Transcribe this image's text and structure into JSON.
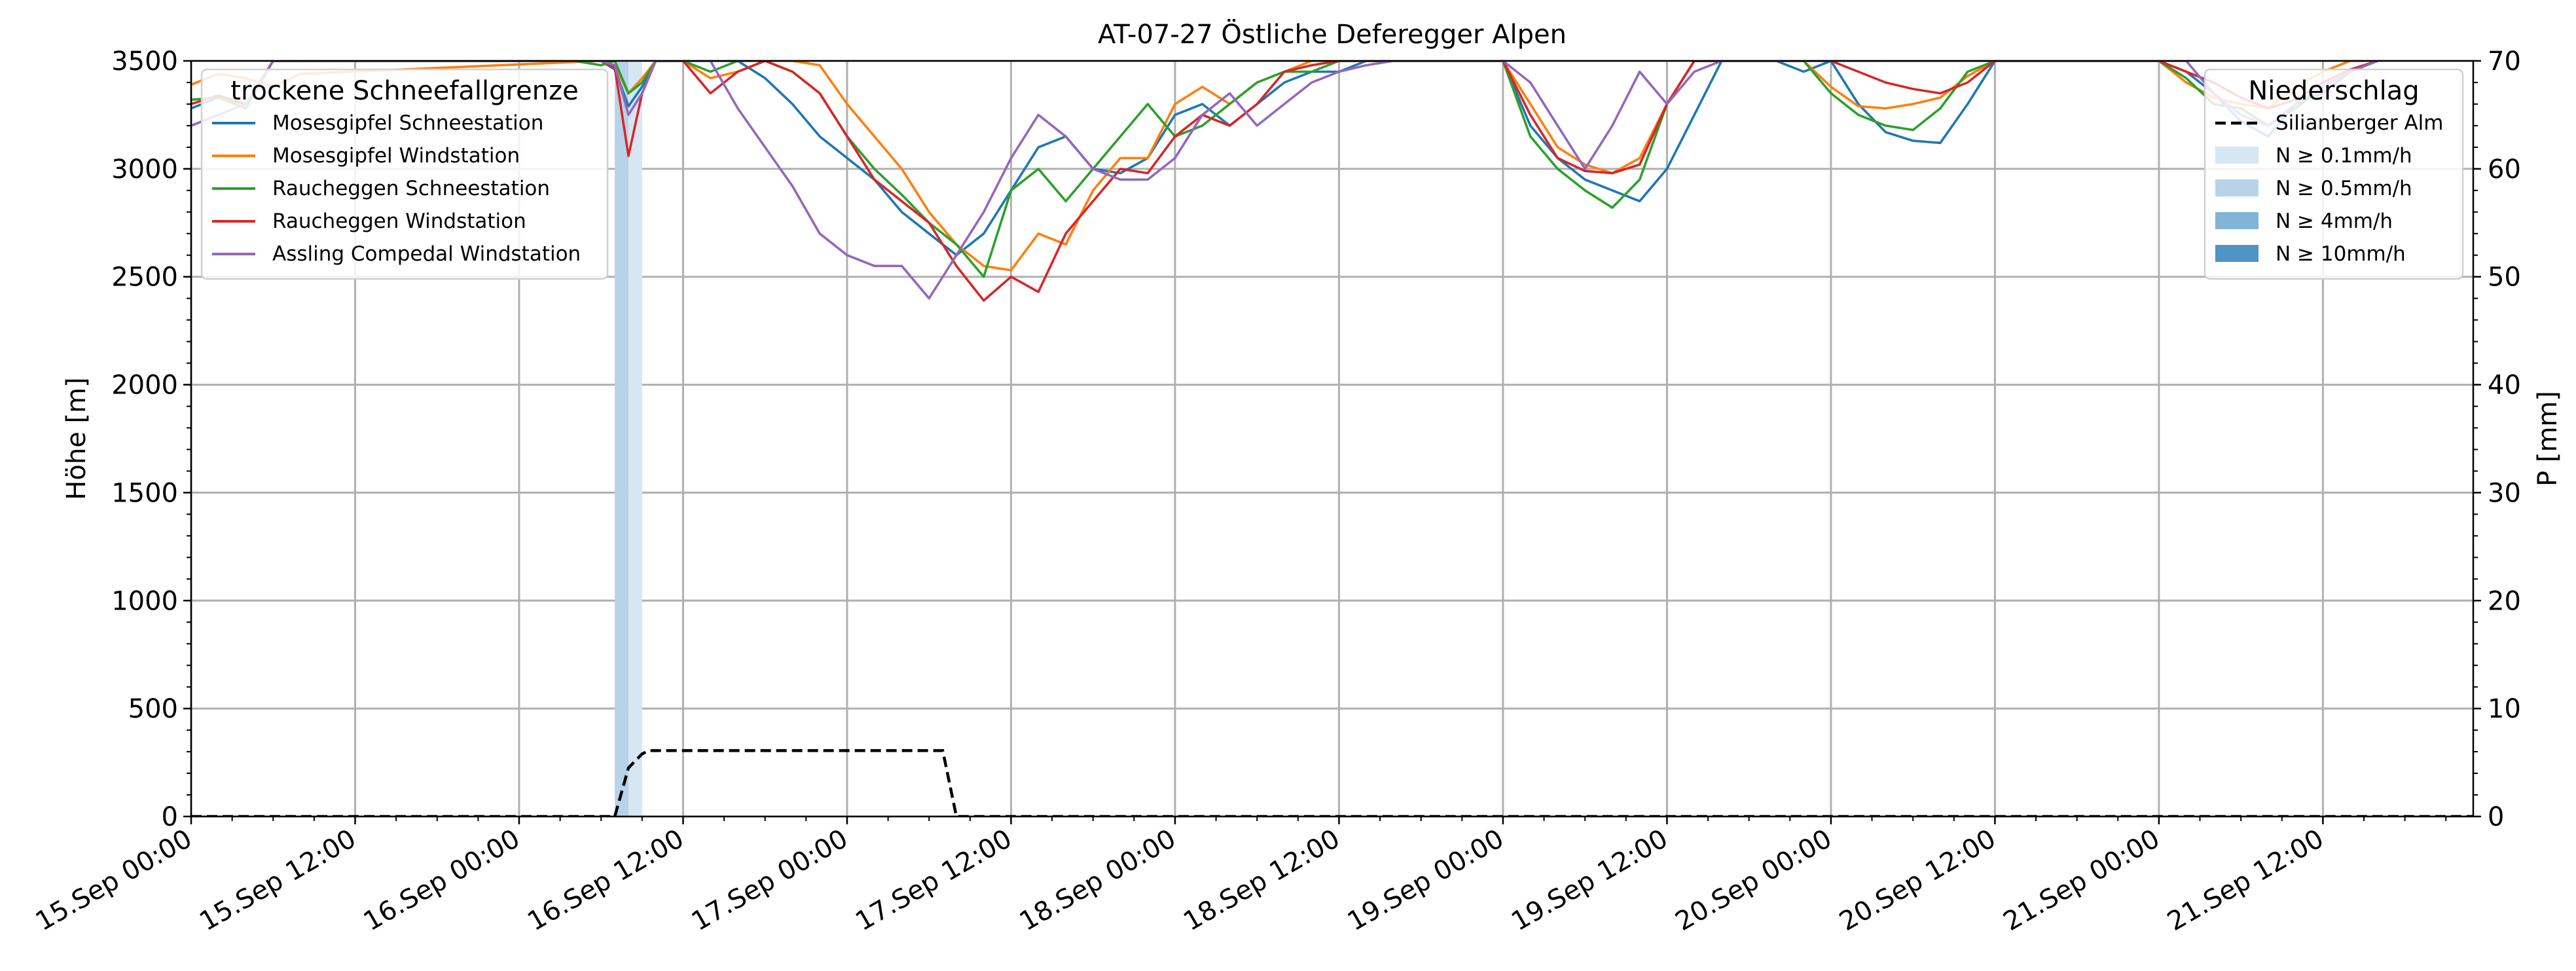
{
  "chart_data": {
    "type": "line",
    "title": "AT-07-27 Östliche Deferegger Alpen",
    "ylabel_left": "Höhe [m]",
    "ylabel_right": "P [mm]",
    "ylim_left": [
      0,
      3500
    ],
    "ylim_right": [
      0,
      70
    ],
    "yticks_left": [
      "0",
      "500",
      "1000",
      "1500",
      "2000",
      "2500",
      "3000",
      "3500"
    ],
    "yticks_right": [
      "0",
      "10",
      "20",
      "30",
      "40",
      "50",
      "60",
      "70"
    ],
    "x_range_hours": [
      0,
      167
    ],
    "xticks": [
      "15.Sep 00:00",
      "15.Sep 12:00",
      "16.Sep 00:00",
      "16.Sep 12:00",
      "17.Sep 00:00",
      "17.Sep 12:00",
      "18.Sep 00:00",
      "18.Sep 12:00",
      "19.Sep 00:00",
      "19.Sep 12:00",
      "20.Sep 00:00",
      "20.Sep 12:00",
      "21.Sep 00:00",
      "21.Sep 12:00"
    ],
    "grid": true,
    "legend_left": {
      "title": "trockene Schneefallgrenze",
      "placement": "top-left"
    },
    "legend_right": {
      "title": "Niederschlag",
      "placement": "top-right"
    },
    "series": [
      {
        "name": "Mosesgipfel Schneestation",
        "color": "#1f77b4",
        "x": [
          0,
          2,
          4,
          6,
          30,
          31,
          32,
          33,
          34,
          35,
          36,
          38,
          40,
          42,
          44,
          46,
          48,
          50,
          52,
          54,
          56,
          58,
          60,
          62,
          64,
          66,
          68,
          70,
          72,
          74,
          76,
          78,
          80,
          82,
          84,
          86,
          88,
          96,
          98,
          100,
          102,
          104,
          106,
          108,
          110,
          112,
          114,
          116,
          118,
          120,
          122,
          124,
          126,
          128,
          130,
          132,
          134,
          136,
          138,
          140,
          142,
          144,
          146,
          148,
          150,
          152,
          154,
          156,
          158,
          160
        ],
        "y": [
          3280,
          3330,
          3300,
          3500,
          3500,
          3460,
          3290,
          3380,
          3500,
          3500,
          3500,
          3500,
          3500,
          3420,
          3300,
          3150,
          3050,
          2950,
          2800,
          2700,
          2600,
          2700,
          2900,
          3100,
          3150,
          3000,
          2980,
          3050,
          3250,
          3300,
          3200,
          3300,
          3400,
          3450,
          3450,
          3500,
          3500,
          3500,
          3200,
          3050,
          2950,
          2900,
          2850,
          3000,
          3250,
          3500,
          3500,
          3500,
          3450,
          3500,
          3300,
          3170,
          3130,
          3120,
          3300,
          3500,
          3500,
          3500,
          3500,
          3500,
          3500,
          3500,
          3450,
          3350,
          3220,
          3150,
          3300,
          3350,
          3450,
          3500
        ]
      },
      {
        "name": "Mosesgipfel Windstation",
        "color": "#ff7f0e",
        "x": [
          0,
          2,
          4,
          6,
          8,
          30,
          31,
          32,
          33,
          34,
          35,
          36,
          38,
          40,
          42,
          44,
          46,
          48,
          50,
          52,
          54,
          56,
          58,
          60,
          62,
          64,
          66,
          68,
          70,
          72,
          74,
          76,
          78,
          80,
          82,
          84,
          86,
          88,
          96,
          98,
          100,
          102,
          104,
          106,
          108,
          110,
          112,
          114,
          116,
          118,
          120,
          122,
          124,
          126,
          128,
          130,
          132,
          134,
          136,
          138,
          140,
          142,
          144,
          146,
          148,
          150,
          152,
          154,
          156,
          158,
          160
        ],
        "y": [
          3390,
          3440,
          3420,
          3380,
          3440,
          3500,
          3480,
          3350,
          3420,
          3500,
          3500,
          3500,
          3420,
          3450,
          3500,
          3500,
          3480,
          3300,
          3150,
          3000,
          2800,
          2650,
          2550,
          2530,
          2700,
          2650,
          2900,
          3050,
          3050,
          3300,
          3380,
          3300,
          3400,
          3450,
          3500,
          3500,
          3500,
          3500,
          3500,
          3300,
          3100,
          3020,
          2980,
          3050,
          3300,
          3500,
          3500,
          3500,
          3500,
          3500,
          3380,
          3290,
          3280,
          3300,
          3330,
          3430,
          3500,
          3500,
          3500,
          3500,
          3500,
          3500,
          3500,
          3400,
          3330,
          3300,
          3280,
          3380,
          3450,
          3500,
          3500
        ]
      },
      {
        "name": "Raucheggen Schneestation",
        "color": "#2ca02c",
        "x": [
          0,
          2,
          4,
          6,
          28,
          30,
          31,
          32,
          33,
          34,
          35,
          36,
          38,
          40,
          42,
          44,
          46,
          48,
          50,
          52,
          54,
          56,
          58,
          60,
          62,
          64,
          66,
          68,
          70,
          72,
          74,
          76,
          78,
          80,
          82,
          84,
          86,
          88,
          96,
          98,
          100,
          102,
          104,
          106,
          108,
          110,
          112,
          114,
          116,
          118,
          120,
          122,
          124,
          126,
          128,
          130,
          132,
          134,
          136,
          138,
          140,
          142,
          144,
          146,
          148,
          150,
          152,
          154,
          156,
          158,
          160
        ],
        "y": [
          3320,
          3330,
          3280,
          3500,
          3500,
          3480,
          3500,
          3350,
          3400,
          3500,
          3500,
          3500,
          3450,
          3500,
          3500,
          3450,
          3350,
          3150,
          3000,
          2880,
          2750,
          2650,
          2500,
          2900,
          3000,
          2850,
          3000,
          3150,
          3300,
          3150,
          3200,
          3300,
          3400,
          3450,
          3450,
          3500,
          3500,
          3500,
          3500,
          3150,
          3000,
          2900,
          2820,
          2950,
          3300,
          3500,
          3500,
          3500,
          3500,
          3500,
          3350,
          3250,
          3200,
          3180,
          3280,
          3450,
          3500,
          3500,
          3500,
          3500,
          3500,
          3500,
          3500,
          3420,
          3300,
          3280,
          3200,
          3280,
          3380,
          3450,
          3500
        ]
      },
      {
        "name": "Raucheggen Windstation",
        "color": "#d62728",
        "x": [
          0,
          2,
          4,
          6,
          30,
          31,
          32,
          33,
          34,
          35,
          36,
          38,
          40,
          42,
          44,
          46,
          48,
          50,
          52,
          54,
          56,
          58,
          60,
          62,
          64,
          66,
          68,
          70,
          72,
          74,
          76,
          78,
          80,
          82,
          84,
          86,
          88,
          96,
          98,
          100,
          102,
          104,
          106,
          108,
          110,
          112,
          114,
          116,
          118,
          120,
          122,
          124,
          126,
          128,
          130,
          132,
          134,
          136,
          138,
          140,
          142,
          144,
          146,
          148,
          150,
          152,
          154,
          156,
          158,
          160
        ],
        "y": [
          3300,
          3340,
          3300,
          3500,
          3500,
          3470,
          3060,
          3350,
          3500,
          3500,
          3500,
          3350,
          3450,
          3500,
          3450,
          3350,
          3150,
          2950,
          2850,
          2750,
          2550,
          2390,
          2500,
          2430,
          2700,
          2850,
          3000,
          2980,
          3150,
          3250,
          3200,
          3300,
          3450,
          3480,
          3500,
          3500,
          3500,
          3500,
          3250,
          3050,
          2990,
          2980,
          3020,
          3300,
          3500,
          3500,
          3500,
          3500,
          3500,
          3500,
          3450,
          3400,
          3370,
          3350,
          3400,
          3500,
          3500,
          3500,
          3500,
          3500,
          3500,
          3500,
          3450,
          3400,
          3330,
          3280,
          3320,
          3400,
          3460,
          3500
        ]
      },
      {
        "name": "Assling Compedal Windstation",
        "color": "#9467bd",
        "x": [
          0,
          2,
          4,
          6,
          30,
          31,
          32,
          33,
          34,
          35,
          36,
          38,
          40,
          42,
          44,
          46,
          48,
          50,
          52,
          54,
          56,
          58,
          60,
          62,
          64,
          66,
          68,
          70,
          72,
          74,
          76,
          78,
          80,
          82,
          84,
          86,
          88,
          96,
          98,
          100,
          102,
          104,
          106,
          108,
          110,
          112,
          114,
          116,
          118,
          120,
          122,
          124,
          126,
          128,
          130,
          132,
          134,
          136,
          138,
          140,
          142,
          144,
          146,
          148,
          150,
          152,
          154,
          156,
          158,
          160
        ],
        "y": [
          3200,
          3250,
          3300,
          3500,
          3500,
          3480,
          3250,
          3350,
          3500,
          3500,
          3500,
          3500,
          3280,
          3100,
          2920,
          2700,
          2600,
          2550,
          2550,
          2400,
          2600,
          2800,
          3050,
          3250,
          3150,
          3000,
          2950,
          2950,
          3050,
          3250,
          3350,
          3200,
          3300,
          3400,
          3450,
          3480,
          3500,
          3500,
          3400,
          3200,
          3000,
          3200,
          3450,
          3300,
          3450,
          3500,
          3500,
          3500,
          3500,
          3500,
          3500,
          3500,
          3500,
          3500,
          3500,
          3500,
          3500,
          3500,
          3500,
          3500,
          3500,
          3500,
          3500,
          3350,
          3250,
          3200,
          3300,
          3380,
          3450,
          3500
        ]
      }
    ],
    "precip_series": {
      "name": "Silianberger Alm",
      "color": "#000000",
      "style": "dashed",
      "x": [
        0,
        31,
        32,
        33,
        33.5,
        55,
        56,
        167
      ],
      "y": [
        0,
        0,
        4.5,
        5.8,
        6.1,
        6.1,
        0,
        0
      ]
    },
    "precip_intensity_legend": [
      {
        "label": "N ≥ 0.1mm/h",
        "color": "#d6e6f3"
      },
      {
        "label": "N ≥ 0.5mm/h",
        "color": "#b7d3ea"
      },
      {
        "label": "N ≥ 4mm/h",
        "color": "#82b4d8"
      },
      {
        "label": "N ≥ 10mm/h",
        "color": "#4f94c4"
      }
    ],
    "precip_bands": [
      {
        "from": 31,
        "to": 32,
        "level": 1
      },
      {
        "from": 32,
        "to": 33,
        "level": 0
      }
    ]
  }
}
